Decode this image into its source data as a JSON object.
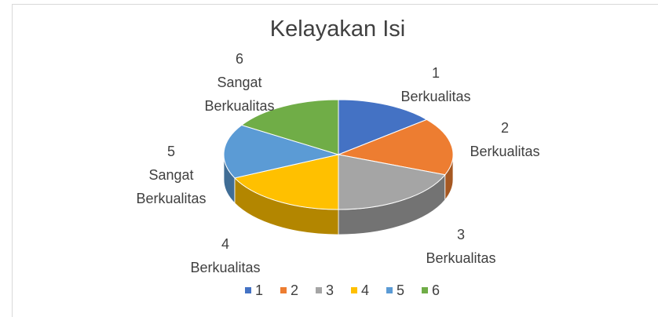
{
  "chart_data": {
    "type": "pie3d",
    "title": "Kelayakan Isi",
    "categories": [
      "1",
      "2",
      "3",
      "4",
      "5",
      "6"
    ],
    "data_labels": [
      "Berkualitas",
      "Berkualitas",
      "Berkualitas",
      "Berkualitas",
      "Sangat Berkualitas",
      "Sangat Berkualitas"
    ],
    "values": [
      14,
      17,
      19,
      18,
      16,
      16
    ],
    "colors": [
      "#4472c4",
      "#ed7d31",
      "#a5a5a5",
      "#ffc000",
      "#5b9bd5",
      "#70ad47"
    ],
    "legend": "bottom"
  }
}
